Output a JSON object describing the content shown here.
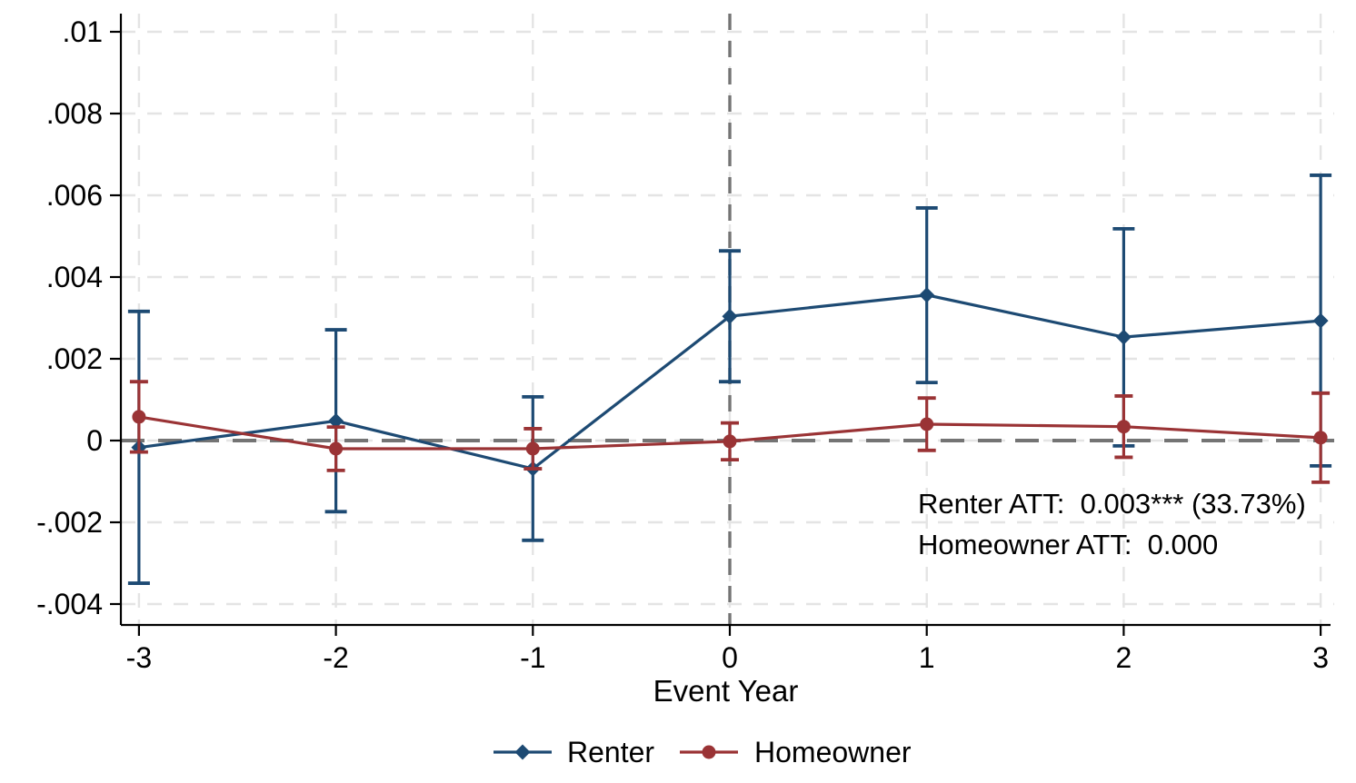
{
  "chart_data": {
    "type": "line",
    "title": "",
    "xlabel": "Event Year",
    "ylabel": "",
    "grid": true,
    "xlim": [
      -3.09,
      3.07
    ],
    "ylim": [
      -0.00456,
      0.01044
    ],
    "x_ticks": [
      -3,
      -2,
      -1,
      0,
      1,
      2,
      3
    ],
    "x_tick_labels": [
      "-3",
      "-2",
      "-1",
      "0",
      "1",
      "2",
      "3"
    ],
    "y_ticks": [
      0.01,
      0.008,
      0.006,
      0.004,
      0.002,
      0,
      -0.002,
      -0.004
    ],
    "y_tick_labels": [
      ".01",
      ".008",
      ".006",
      ".004",
      ".002",
      "0",
      "-.002",
      "-.004"
    ],
    "reference_lines": {
      "vertical_x": 0,
      "horizontal_y": 0,
      "color": "#747474"
    },
    "series": [
      {
        "name": "Renter",
        "marker": "diamond",
        "color": "#1d4a73",
        "x": [
          -3,
          -2,
          -1,
          0,
          1,
          2,
          3
        ],
        "y": [
          -0.00017,
          0.00048,
          -0.00069,
          0.00304,
          0.00356,
          0.00253,
          0.00293
        ],
        "ci_low": [
          -0.00349,
          -0.00174,
          -0.00244,
          0.00144,
          0.00142,
          -0.00013,
          -0.00062
        ],
        "ci_high": [
          0.00316,
          0.00271,
          0.00107,
          0.00464,
          0.00569,
          0.00518,
          0.00649
        ]
      },
      {
        "name": "Homeowner",
        "marker": "circle",
        "color": "#9a3335",
        "x": [
          -3,
          -2,
          -1,
          0,
          1,
          2,
          3
        ],
        "y": [
          0.00058,
          -0.0002,
          -0.0002,
          -2e-05,
          0.0004,
          0.00034,
          7e-05
        ],
        "ci_low": [
          -0.00028,
          -0.00073,
          -0.00069,
          -0.00047,
          -0.00024,
          -0.00041,
          -0.00102
        ],
        "ci_high": [
          0.00144,
          0.00033,
          0.00029,
          0.00043,
          0.00104,
          0.00109,
          0.00116
        ]
      }
    ],
    "annotation": {
      "lines": [
        "Renter ATT:  0.003*** (33.73%)",
        "Homeowner ATT:  0.000"
      ]
    },
    "legend": {
      "position": "bottom",
      "entries": [
        "Renter",
        "Homeowner"
      ]
    }
  }
}
